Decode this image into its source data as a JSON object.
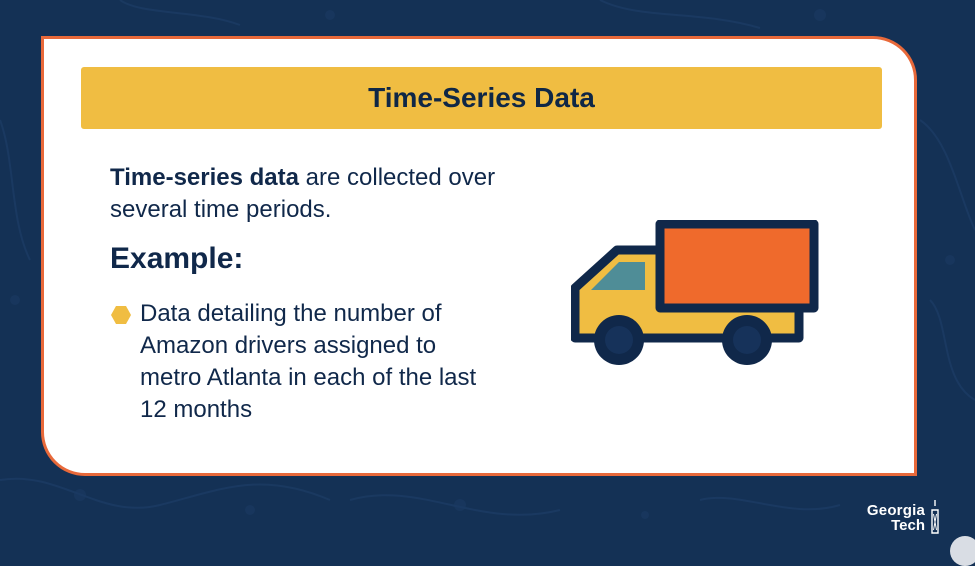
{
  "slide": {
    "title": "Time-Series Data",
    "definition_term": "Time-series data",
    "definition_rest": " are collected over several time periods.",
    "example_heading": "Example:",
    "bullets": [
      "Data detailing the number of Amazon drivers assigned to metro Atlanta in each of the last 12 months"
    ]
  },
  "logo": {
    "line1": "Georgia",
    "line2": "Tech"
  },
  "colors": {
    "background": "#143155",
    "card_border": "#e8693a",
    "title_bar": "#f0bd42",
    "text_dark": "#10284a",
    "truck_outline": "#10284a",
    "truck_body": "#f0bd42",
    "truck_cargo": "#ef6a2c",
    "truck_window": "#4f8d97"
  },
  "icons": {
    "bullet": "hexagon-bullet-icon",
    "illustration": "truck-icon",
    "logo": "georgia-tech-logo"
  }
}
